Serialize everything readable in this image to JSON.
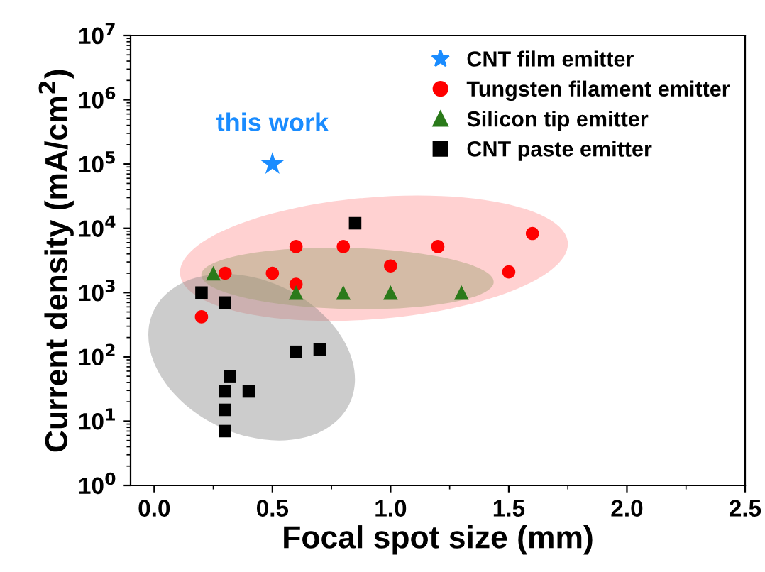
{
  "chart_data": {
    "type": "scatter",
    "xlabel": "Focal spot size (mm)",
    "ylabel": "Current density (mA/cm$^{2}$)",
    "log": "y",
    "xlim": [
      -0.1,
      2.5
    ],
    "ylim": [
      1,
      10000000
    ],
    "xticks": [
      {
        "value": 0,
        "label": "0.0"
      },
      0.5,
      {
        "value": 1,
        "label": "1.0"
      },
      1.5,
      {
        "value": 2,
        "label": "2.0"
      },
      2.5
    ],
    "yticks": [
      {
        "value": 1,
        "label": "10$^{0}$"
      },
      {
        "value": 10,
        "label": "10$^{1}$"
      },
      {
        "value": 100,
        "label": "10$^{2}$"
      },
      {
        "value": 1000,
        "label": "10$^{3}$"
      },
      {
        "value": 10000,
        "label": "10$^{4}$"
      },
      {
        "value": 100000,
        "label": "10$^{5}$"
      },
      {
        "value": 1000000,
        "label": "10$^{6}$"
      },
      {
        "value": 10000000,
        "label": "10$^{7}$"
      }
    ],
    "grid": false,
    "legend": "top right",
    "annotations": [
      {
        "text": "this work",
        "x": 0.5,
        "y": 100000
      }
    ],
    "series": [
      {
        "name": "CNT film emitter",
        "color": "#1a8cff",
        "marker": "star",
        "x": [
          0.5
        ],
        "values": [
          100000
        ]
      },
      {
        "name": "Tungsten filament emitter",
        "color": "#ff0000",
        "marker": "circle",
        "x": [
          0.2,
          0.3,
          0.5,
          0.6,
          0.6,
          0.8,
          1.0,
          1.2,
          1.5,
          1.6
        ],
        "values": [
          420,
          2000,
          2000,
          1350,
          5200,
          5200,
          2600,
          5200,
          2100,
          8300
        ]
      },
      {
        "name": "Silicon tip emitter",
        "color": "#2a7a1a",
        "marker": "triangle",
        "x": [
          0.25,
          0.6,
          0.8,
          1.0,
          1.3
        ],
        "values": [
          2000,
          1000,
          1000,
          1000,
          1000
        ]
      },
      {
        "name": "CNT paste emitter",
        "color": "#000000",
        "marker": "square",
        "x": [
          0.2,
          0.3,
          0.3,
          0.3,
          0.3,
          0.32,
          0.4,
          0.6,
          0.7,
          0.85
        ],
        "values": [
          1000,
          700,
          29,
          15,
          7,
          50,
          29,
          120,
          130,
          12000
        ]
      }
    ]
  }
}
